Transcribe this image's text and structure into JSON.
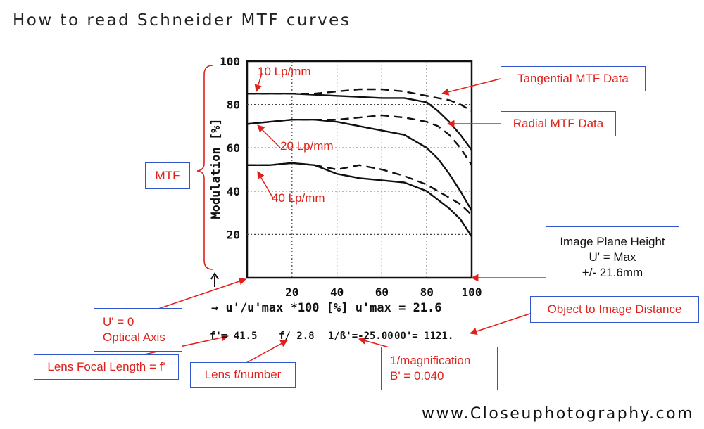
{
  "header": {
    "title": "How to read Schneider MTF curves"
  },
  "footer": {
    "website": "www.Closeuphotography.com"
  },
  "chart_data": {
    "type": "line",
    "title": "How to read Schneider MTF curves",
    "xlabel": "→  u'/u'max *100 [%] u'max = 21.6",
    "ylabel": "Modulation [%]",
    "xlim": [
      0,
      100
    ],
    "ylim": [
      0,
      100
    ],
    "x_ticks": [
      "20",
      "40",
      "60",
      "80",
      "100"
    ],
    "y_ticks": [
      "20",
      "40",
      "60",
      "80",
      "100"
    ],
    "grid": true,
    "series": [
      {
        "name": "10 Lp/mm radial",
        "style": "solid",
        "x": [
          0,
          10,
          20,
          30,
          40,
          50,
          60,
          70,
          80,
          85,
          90,
          95,
          100
        ],
        "y": [
          85,
          85,
          85,
          84.5,
          84,
          83.5,
          83,
          83,
          81,
          77,
          72,
          66,
          59
        ]
      },
      {
        "name": "10 Lp/mm tangential",
        "style": "dashed",
        "x": [
          0,
          10,
          20,
          30,
          40,
          50,
          60,
          70,
          80,
          85,
          90,
          95,
          100
        ],
        "y": [
          85,
          85,
          85,
          85,
          86,
          87,
          87,
          86,
          84,
          83,
          82,
          80,
          77
        ]
      },
      {
        "name": "20 Lp/mm radial",
        "style": "solid",
        "x": [
          0,
          10,
          20,
          30,
          40,
          50,
          60,
          70,
          80,
          85,
          90,
          95,
          100
        ],
        "y": [
          71,
          72,
          73,
          73,
          72,
          70,
          68,
          66,
          60,
          55,
          48,
          40,
          31
        ]
      },
      {
        "name": "20 Lp/mm tangential",
        "style": "dashed",
        "x": [
          0,
          10,
          20,
          30,
          40,
          50,
          60,
          70,
          80,
          85,
          90,
          95,
          100
        ],
        "y": [
          71,
          72,
          73,
          73,
          73,
          74,
          75,
          74,
          72,
          70,
          66,
          60,
          52
        ]
      },
      {
        "name": "40 Lp/mm radial",
        "style": "solid",
        "x": [
          0,
          10,
          20,
          30,
          40,
          50,
          60,
          70,
          80,
          85,
          90,
          95,
          100
        ],
        "y": [
          52,
          52,
          53,
          52,
          48,
          46,
          45,
          44,
          40,
          36,
          32,
          27,
          19
        ]
      },
      {
        "name": "40 Lp/mm tangential",
        "style": "dashed",
        "x": [
          0,
          10,
          20,
          30,
          40,
          50,
          60,
          70,
          80,
          85,
          90,
          95,
          100
        ],
        "y": [
          52,
          52,
          53,
          52,
          50,
          52,
          50,
          47,
          43,
          40,
          37,
          34,
          29
        ]
      }
    ],
    "annotations": [
      {
        "text": "10 Lp/mm",
        "x": 8,
        "y": 88
      },
      {
        "text": "20 Lp/mm",
        "x": 20,
        "y": 61
      },
      {
        "text": "40 Lp/mm",
        "x": 22,
        "y": 36
      }
    ],
    "params_line": [
      "f'= 41.5",
      "f/ 2.8",
      "1/ß'=-25.00",
      "00'= 1121."
    ],
    "colors": {
      "curve": "#111111",
      "grid": "#444444",
      "annotation": "#e0201a",
      "box_border": "#3355cc"
    }
  },
  "callouts": {
    "tangential": "Tangential MTF Data",
    "radial": "Radial MTF Data",
    "mtf": "MTF",
    "image_plane": [
      "Image Plane Height",
      "U' = Max",
      "+/- 21.6mm"
    ],
    "object_distance": "Object to Image Distance",
    "optical_axis": [
      "U' = 0",
      "Optical Axis"
    ],
    "focal_length": "Lens Focal Length = f'",
    "f_number": "Lens f/number",
    "magnification": [
      "1/magnification",
      "B' = 0.040"
    ]
  }
}
